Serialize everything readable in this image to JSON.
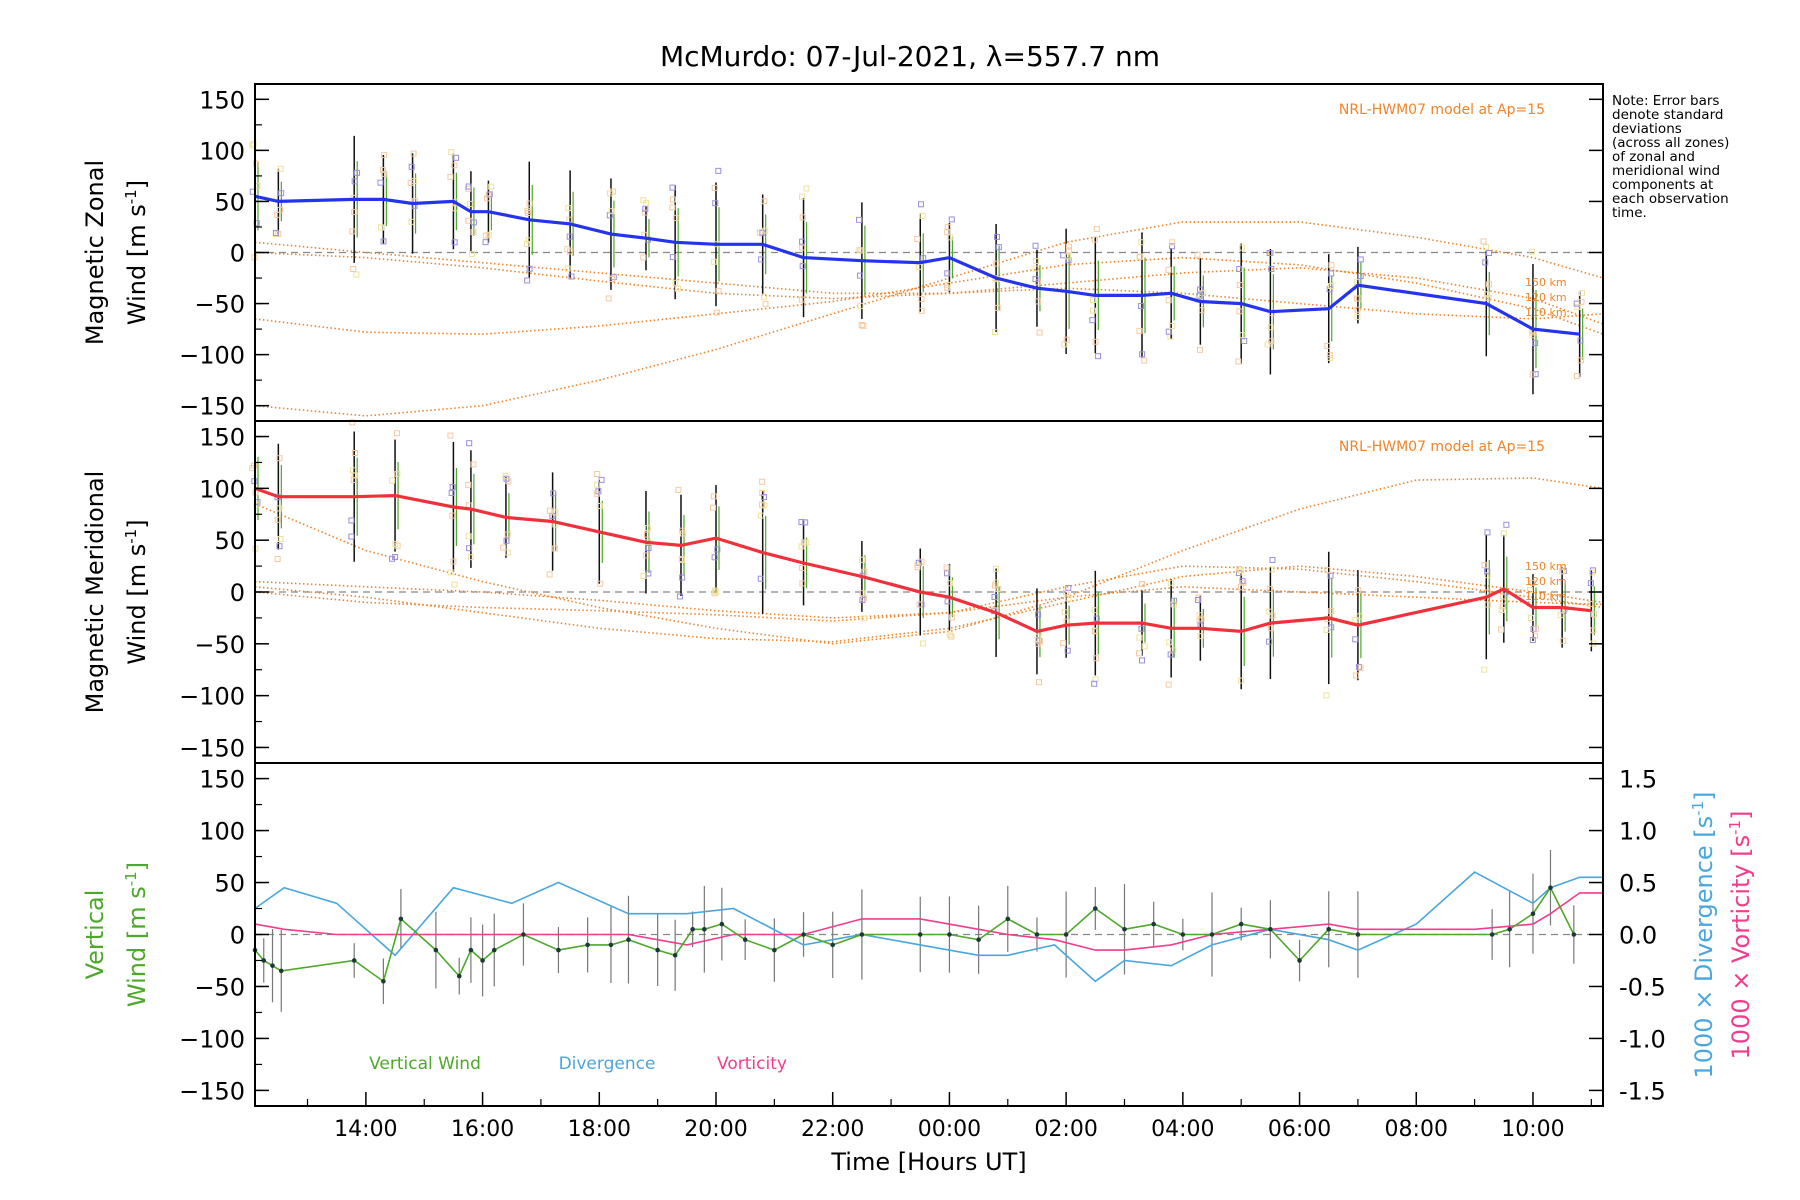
{
  "title": "McMurdo: 07-Jul-2021, λ=557.7 nm",
  "note_lines": [
    "Note: Error bars",
    "denote standard",
    "deviations",
    "(across all zones)",
    "of zonal and",
    "meridional wind",
    "components at",
    "each observation",
    "time."
  ],
  "colors": {
    "zonal": "#2433ee",
    "meridional": "#f0303a",
    "vertical": "#4ea82a",
    "divergence": "#4aa6de",
    "vorticity": "#f23c8c",
    "model": "#f0842a",
    "scatter": "#9a8ee0",
    "errorbar": "#101010",
    "zero_line": "#888888"
  },
  "chart_data": [
    {
      "type": "line",
      "panel": "zonal",
      "ylabel_line1": "Magnetic Zonal",
      "ylabel_line2": "Wind [m s",
      "ylabel_sup": "-1",
      "ylabel_end": "]",
      "ylim": [
        -165,
        165
      ],
      "yticks": [
        150,
        100,
        50,
        0,
        -50,
        -100,
        -150
      ],
      "model_label": "NRL-HWM07 model at Ap=15",
      "height_labels": [
        "150 km",
        "120 km",
        "110 km"
      ],
      "series": [
        {
          "name": "Magnetic Zonal Wind",
          "x": [
            12.1,
            12.5,
            13.8,
            14.3,
            14.8,
            15.5,
            15.8,
            16.1,
            16.8,
            17.5,
            18.2,
            18.8,
            19.3,
            20.0,
            20.8,
            21.5,
            22.5,
            23.5,
            24.0,
            24.8,
            25.5,
            26.0,
            26.5,
            27.3,
            27.8,
            28.3,
            29.0,
            29.5,
            30.5,
            31.0,
            33.2,
            34.0,
            34.8
          ],
          "y": [
            55,
            50,
            52,
            52,
            48,
            50,
            40,
            40,
            32,
            28,
            18,
            14,
            10,
            8,
            8,
            -5,
            -8,
            -10,
            -5,
            -25,
            -35,
            -38,
            -42,
            -42,
            -40,
            -48,
            -50,
            -58,
            -55,
            -32,
            -50,
            -75,
            -80
          ]
        }
      ],
      "model_curves": [
        {
          "x": [
            12.1,
            14,
            16,
            18,
            20,
            22,
            24,
            26,
            28,
            30,
            32,
            34,
            35.2
          ],
          "y": [
            0,
            -5,
            -15,
            -28,
            -40,
            -45,
            -40,
            -30,
            -20,
            -15,
            -25,
            -45,
            -70
          ]
        },
        {
          "x": [
            12.1,
            14,
            16,
            18,
            20,
            22,
            24,
            26,
            28,
            30,
            32,
            34,
            35.2
          ],
          "y": [
            -65,
            -78,
            -80,
            -72,
            -60,
            -48,
            -30,
            -12,
            -5,
            -12,
            -30,
            -55,
            -80
          ]
        },
        {
          "x": [
            12.1,
            14,
            16,
            18,
            20,
            22,
            24,
            26,
            28,
            30,
            32,
            34,
            35.2
          ],
          "y": [
            -150,
            -160,
            -150,
            -125,
            -95,
            -60,
            -25,
            10,
            30,
            30,
            15,
            -5,
            -25
          ]
        },
        {
          "x": [
            12.1,
            14,
            16,
            18,
            20,
            22,
            24,
            26,
            28,
            30,
            32,
            34,
            35.2
          ],
          "y": [
            10,
            0,
            -10,
            -20,
            -30,
            -40,
            -40,
            -35,
            -40,
            -50,
            -60,
            -65,
            -60
          ]
        }
      ]
    },
    {
      "type": "line",
      "panel": "meridional",
      "ylabel_line1": "Magnetic Meridional",
      "ylabel_line2": "Wind [m s",
      "ylabel_sup": "-1",
      "ylabel_end": "]",
      "ylim": [
        -165,
        165
      ],
      "yticks": [
        150,
        100,
        50,
        0,
        -50,
        -100,
        -150
      ],
      "model_label": "NRL-HWM07 model at Ap=15",
      "height_labels": [
        "150 km",
        "120 km",
        "110 km"
      ],
      "series": [
        {
          "name": "Magnetic Meridional Wind",
          "x": [
            12.1,
            12.5,
            13.8,
            14.5,
            15.5,
            15.8,
            16.4,
            17.2,
            18.0,
            18.8,
            19.4,
            20.0,
            20.8,
            21.5,
            22.5,
            23.5,
            24.0,
            24.8,
            25.5,
            26.0,
            26.5,
            27.3,
            27.8,
            28.3,
            29.0,
            29.5,
            30.5,
            31.0,
            33.2,
            33.5,
            34.0,
            34.5,
            35.0
          ],
          "y": [
            100,
            92,
            92,
            93,
            82,
            80,
            72,
            68,
            58,
            48,
            45,
            52,
            38,
            28,
            15,
            0,
            -5,
            -20,
            -38,
            -32,
            -30,
            -30,
            -35,
            -35,
            -38,
            -30,
            -25,
            -32,
            -5,
            3,
            -15,
            -15,
            -18
          ]
        }
      ],
      "model_curves": [
        {
          "x": [
            12.1,
            14,
            16,
            18,
            20,
            22,
            24,
            26,
            28,
            30,
            32,
            34,
            35.2
          ],
          "y": [
            85,
            40,
            10,
            -15,
            -35,
            -50,
            -38,
            -5,
            40,
            80,
            108,
            110,
            100
          ]
        },
        {
          "x": [
            12.1,
            14,
            16,
            18,
            20,
            22,
            24,
            26,
            28,
            30,
            32,
            34,
            35.2
          ],
          "y": [
            10,
            5,
            0,
            -8,
            -18,
            -25,
            -20,
            5,
            25,
            22,
            10,
            -5,
            -15
          ]
        },
        {
          "x": [
            12.1,
            14,
            16,
            18,
            20,
            22,
            24,
            26,
            28,
            30,
            32,
            34,
            35.2
          ],
          "y": [
            5,
            -5,
            -20,
            -35,
            -45,
            -48,
            -35,
            -10,
            15,
            25,
            15,
            0,
            -10
          ]
        },
        {
          "x": [
            12.1,
            14,
            16,
            18,
            20,
            22,
            24,
            26,
            28,
            30,
            32,
            34,
            35.2
          ],
          "y": [
            0,
            -10,
            -15,
            -18,
            -22,
            -28,
            -20,
            -5,
            5,
            0,
            -5,
            -10,
            -12
          ]
        }
      ]
    },
    {
      "type": "line",
      "panel": "vertical",
      "ylabel_line1": "Vertical",
      "ylabel_line2": "Wind [m s",
      "ylabel_sup": "-1",
      "ylabel_end": "]",
      "ylim": [
        -165,
        165
      ],
      "yticks": [
        150,
        100,
        50,
        0,
        -50,
        -100,
        -150
      ],
      "y2lim": [
        -1.65,
        1.65
      ],
      "y2ticks": [
        "1.5",
        "1.0",
        "0.5",
        "0.0",
        "-0.5",
        "-1.0",
        "-1.5"
      ],
      "y2label_divergence": "1000 × Divergence [s",
      "y2label_vorticity": "1000 × Vorticity [s",
      "y2label_sup": "-1",
      "y2label_end": "]",
      "xlabel": "Time [Hours UT]",
      "xticks": [
        "14:00",
        "16:00",
        "18:00",
        "20:00",
        "22:00",
        "00:00",
        "02:00",
        "04:00",
        "06:00",
        "08:00",
        "10:00"
      ],
      "xtick_values": [
        14,
        16,
        18,
        20,
        22,
        24,
        26,
        28,
        30,
        32,
        34
      ],
      "xlim": [
        12.1,
        35.2
      ],
      "legend": [
        "Vertical Wind",
        "Divergence",
        "Vorticity"
      ],
      "series": [
        {
          "name": "Vertical Wind",
          "axis": "left",
          "x": [
            12.1,
            12.25,
            12.4,
            12.55,
            13.8,
            14.3,
            14.6,
            15.2,
            15.6,
            15.8,
            16.0,
            16.2,
            16.7,
            17.3,
            17.8,
            18.2,
            18.5,
            19.0,
            19.3,
            19.6,
            19.8,
            20.1,
            20.5,
            21.0,
            21.5,
            22.0,
            22.5,
            23.5,
            24.0,
            24.5,
            25.0,
            25.5,
            26.0,
            26.5,
            27.0,
            27.5,
            28.0,
            28.5,
            29.0,
            29.5,
            30.0,
            30.5,
            31.0,
            33.3,
            33.6,
            34.0,
            34.3,
            34.7
          ],
          "y": [
            -15,
            -25,
            -30,
            -35,
            -25,
            -45,
            15,
            -15,
            -40,
            -15,
            -25,
            -15,
            0,
            -15,
            -10,
            -10,
            -5,
            -15,
            -20,
            5,
            5,
            10,
            -5,
            -15,
            0,
            -10,
            0,
            0,
            0,
            -5,
            15,
            0,
            0,
            25,
            5,
            10,
            0,
            0,
            10,
            5,
            -25,
            5,
            0,
            0,
            5,
            20,
            45,
            0
          ]
        },
        {
          "name": "Divergence",
          "axis": "right",
          "x": [
            12.1,
            12.6,
            13.5,
            14.5,
            15.5,
            16.5,
            17.3,
            18.5,
            19.5,
            20.3,
            21.5,
            22.5,
            23.5,
            24.5,
            25.0,
            25.8,
            26.5,
            27.0,
            27.8,
            28.5,
            29.5,
            30.5,
            31.0,
            32.0,
            33.0,
            34.0,
            34.3,
            34.8,
            35.2
          ],
          "y": [
            0.25,
            0.45,
            0.3,
            -0.2,
            0.45,
            0.3,
            0.5,
            0.2,
            0.2,
            0.25,
            -0.1,
            0.0,
            -0.1,
            -0.2,
            -0.2,
            -0.1,
            -0.45,
            -0.25,
            -0.3,
            -0.1,
            0.05,
            -0.05,
            -0.15,
            0.1,
            0.6,
            0.3,
            0.45,
            0.55,
            0.55
          ]
        },
        {
          "name": "Vorticity",
          "axis": "right",
          "x": [
            12.1,
            12.6,
            13.5,
            14.5,
            15.5,
            16.5,
            17.3,
            18.5,
            19.5,
            20.3,
            21.5,
            22.5,
            23.5,
            24.5,
            25.0,
            25.8,
            26.5,
            27.0,
            27.8,
            28.5,
            29.5,
            30.5,
            31.0,
            32.0,
            33.0,
            34.0,
            34.3,
            34.8,
            35.2
          ],
          "y": [
            0.1,
            0.05,
            0.0,
            0.0,
            0.0,
            0.0,
            0.0,
            0.0,
            -0.1,
            0.0,
            0.0,
            0.15,
            0.15,
            0.05,
            0.0,
            -0.05,
            -0.15,
            -0.15,
            -0.1,
            0.0,
            0.05,
            0.1,
            0.05,
            0.05,
            0.05,
            0.1,
            0.2,
            0.4,
            0.4
          ]
        }
      ]
    }
  ]
}
